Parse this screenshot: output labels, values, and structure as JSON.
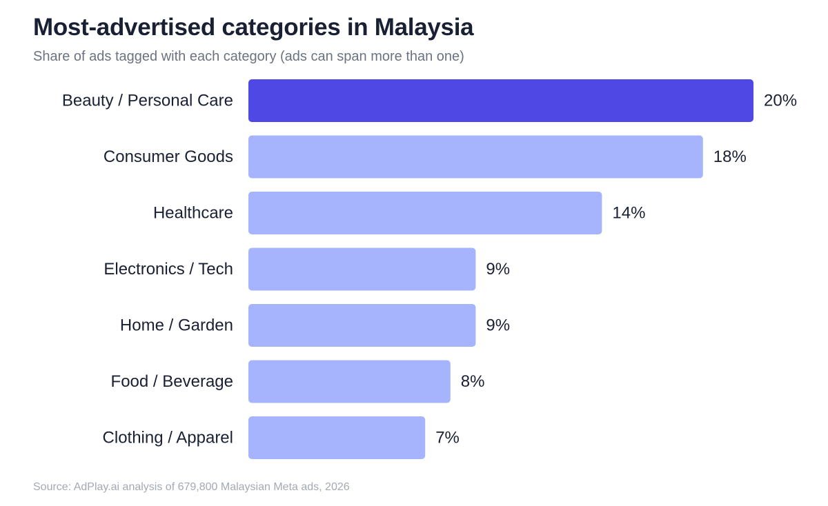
{
  "chart_data": {
    "type": "bar",
    "orientation": "horizontal",
    "title": "Most-advertised categories in Malaysia",
    "subtitle": "Share of ads tagged with each category (ads can span more than one)",
    "source": "Source: AdPlay.ai analysis of 679,800 Malaysian Meta ads, 2026",
    "categories": [
      "Beauty / Personal Care",
      "Consumer Goods",
      "Healthcare",
      "Electronics / Tech",
      "Home / Garden",
      "Food / Beverage",
      "Clothing / Apparel"
    ],
    "values": [
      20,
      18,
      14,
      9,
      9,
      8,
      7
    ],
    "value_labels": [
      "20%",
      "18%",
      "14%",
      "9%",
      "9%",
      "8%",
      "7%"
    ],
    "unit": "%",
    "xlim": [
      0,
      20
    ],
    "grid": false,
    "legend": "none",
    "highlight_index": 0,
    "colors": {
      "highlight": "#5048e5",
      "default": "#a5b4fc",
      "text": "#1a2033",
      "subtitle": "#6b7280",
      "source": "#a3a9b4"
    }
  }
}
